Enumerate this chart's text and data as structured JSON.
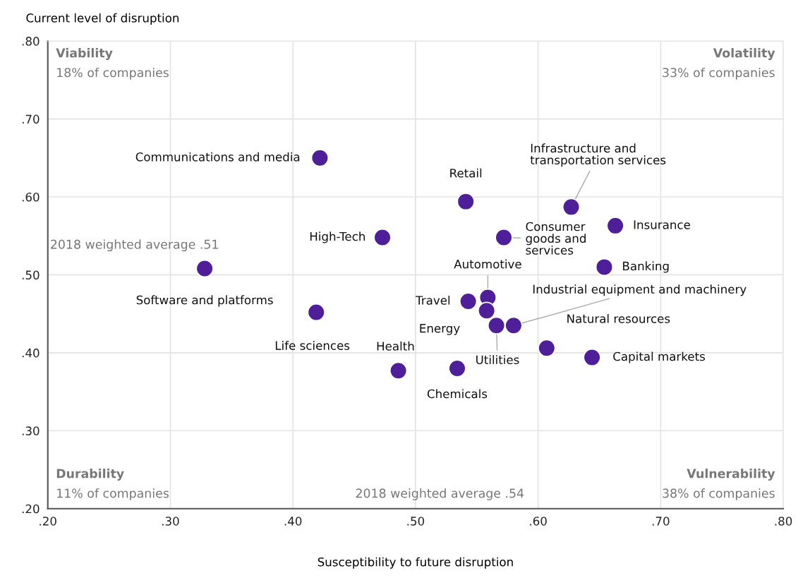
{
  "chart_data": {
    "type": "scatter",
    "xlabel": "Susceptibility to future disruption",
    "ylabel": "Current level of disruption",
    "x": [
      0.422,
      0.541,
      0.627,
      0.663,
      0.572,
      0.473,
      0.654,
      0.328,
      0.559,
      0.543,
      0.558,
      0.419,
      0.566,
      0.58,
      0.607,
      0.644,
      0.486,
      0.534
    ],
    "series": [
      {
        "color": "#4f1f9a",
        "values": [
          0.65,
          0.594,
          0.587,
          0.563,
          0.548,
          0.548,
          0.51,
          0.508,
          0.471,
          0.466,
          0.454,
          0.452,
          0.435,
          0.435,
          0.406,
          0.394,
          0.377,
          0.38
        ]
      }
    ],
    "marker": "circle",
    "grid": true,
    "xlim": [
      0.2,
      0.8
    ],
    "ylim": [
      0.2,
      0.8
    ],
    "xticks": [
      {
        "value": 0.2,
        "label": ".20"
      },
      {
        "value": 0.3,
        "label": ".30"
      },
      {
        "value": 0.4,
        "label": ".40"
      },
      {
        "value": 0.5,
        "label": ".50"
      },
      {
        "value": 0.6,
        "label": ".60"
      },
      {
        "value": 0.7,
        "label": ".70"
      },
      {
        "value": 0.8,
        "label": ".80"
      }
    ],
    "yticks": [
      {
        "value": 0.2,
        "label": ".20"
      },
      {
        "value": 0.3,
        "label": ".30"
      },
      {
        "value": 0.4,
        "label": ".40"
      },
      {
        "value": 0.5,
        "label": ".50"
      },
      {
        "value": 0.6,
        "label": ".60"
      },
      {
        "value": 0.7,
        "label": ".70"
      },
      {
        "value": 0.8,
        "label": ".80"
      }
    ],
    "annotations": [
      {
        "text": "Communications and media",
        "x": 0.422,
        "y": 0.65
      },
      {
        "text": "Retail",
        "x": 0.541,
        "y": 0.594
      },
      {
        "text": "Infrastructure and\ntransportation services",
        "x": 0.627,
        "y": 0.587
      },
      {
        "text": "Insurance",
        "x": 0.663,
        "y": 0.563
      },
      {
        "text": "Consumer\ngoods and\nservices",
        "x": 0.572,
        "y": 0.548
      },
      {
        "text": "High-Tech",
        "x": 0.473,
        "y": 0.548
      },
      {
        "text": "Banking",
        "x": 0.654,
        "y": 0.51
      },
      {
        "text": "Software and platforms",
        "x": 0.328,
        "y": 0.508
      },
      {
        "text": "Automotive",
        "x": 0.559,
        "y": 0.471
      },
      {
        "text": "Travel",
        "x": 0.543,
        "y": 0.466
      },
      {
        "text": "Energy",
        "x": 0.558,
        "y": 0.454
      },
      {
        "text": "Life sciences",
        "x": 0.419,
        "y": 0.452
      },
      {
        "text": "Utilities",
        "x": 0.566,
        "y": 0.435
      },
      {
        "text": "Industrial equipment and machinery",
        "x": 0.58,
        "y": 0.435
      },
      {
        "text": "Natural resources",
        "x": 0.607,
        "y": 0.406
      },
      {
        "text": "Capital markets",
        "x": 0.644,
        "y": 0.394
      },
      {
        "text": "Health",
        "x": 0.486,
        "y": 0.377
      },
      {
        "text": "Chemicals",
        "x": 0.534,
        "y": 0.38
      },
      "Viability",
      "18% of companies",
      "Volatility",
      "33% of companies",
      "Durability",
      "11% of companies",
      "Vulnerability",
      "38% of companies",
      "2018 weighted average .51",
      "2018 weighted average .54"
    ]
  }
}
